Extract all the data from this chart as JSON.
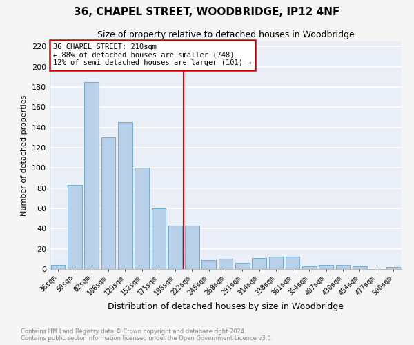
{
  "title": "36, CHAPEL STREET, WOODBRIDGE, IP12 4NF",
  "subtitle": "Size of property relative to detached houses in Woodbridge",
  "xlabel": "Distribution of detached houses by size in Woodbridge",
  "ylabel": "Number of detached properties",
  "categories": [
    "36sqm",
    "59sqm",
    "82sqm",
    "106sqm",
    "129sqm",
    "152sqm",
    "175sqm",
    "198sqm",
    "222sqm",
    "245sqm",
    "268sqm",
    "291sqm",
    "314sqm",
    "338sqm",
    "361sqm",
    "384sqm",
    "407sqm",
    "430sqm",
    "454sqm",
    "477sqm",
    "500sqm"
  ],
  "values": [
    4,
    83,
    185,
    130,
    145,
    100,
    60,
    43,
    43,
    9,
    10,
    6,
    11,
    12,
    12,
    3,
    4,
    4,
    3,
    0,
    2
  ],
  "bar_color": "#b8d0e8",
  "bar_edge_color": "#7aafd4",
  "vline_x": 8.0,
  "vline_color": "#cc0000",
  "annotation_text": "36 CHAPEL STREET: 210sqm\n← 88% of detached houses are smaller (748)\n12% of semi-detached houses are larger (101) →",
  "annotation_box_color": "#ffffff",
  "annotation_box_edge_color": "#cc0000",
  "bg_color": "#eaeff7",
  "grid_color": "#ffffff",
  "footer_line1": "Contains HM Land Registry data © Crown copyright and database right 2024.",
  "footer_line2": "Contains public sector information licensed under the Open Government Licence v3.0.",
  "ylim": [
    0,
    225
  ],
  "yticks": [
    0,
    20,
    40,
    60,
    80,
    100,
    120,
    140,
    160,
    180,
    200,
    220
  ],
  "fig_bg": "#f5f5f5"
}
